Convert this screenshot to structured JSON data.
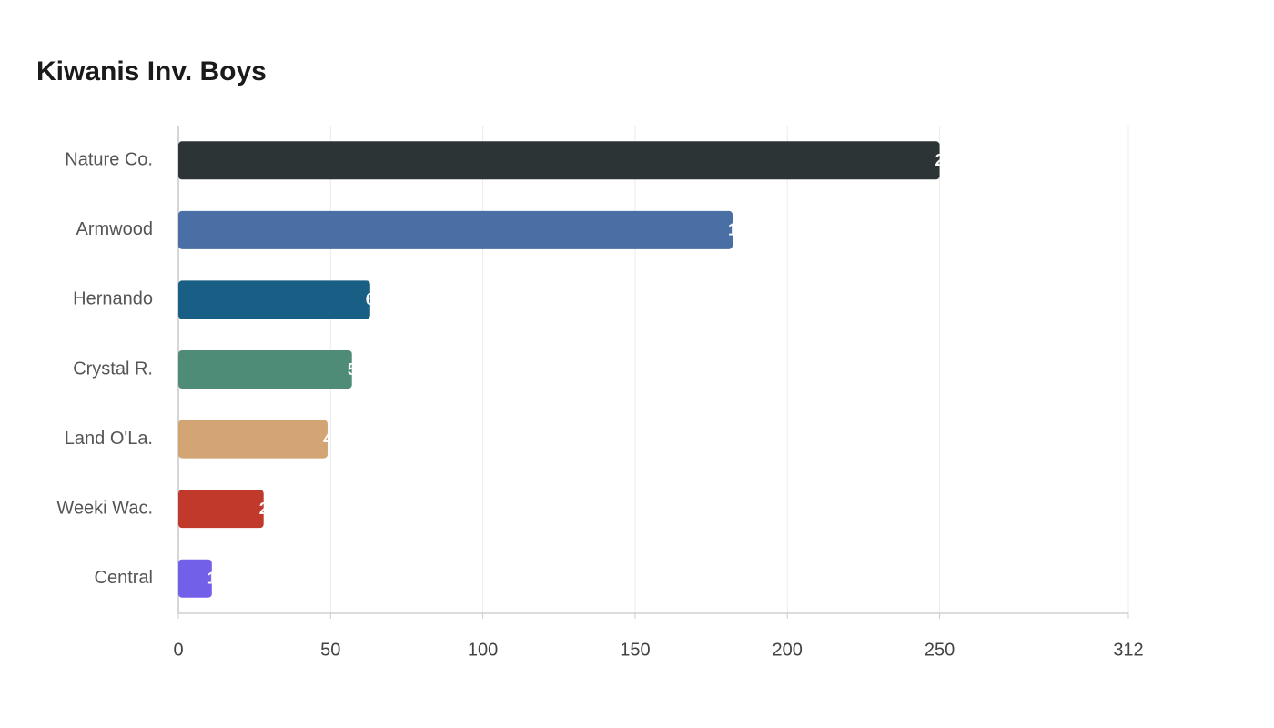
{
  "chart_data": {
    "type": "hbar",
    "title": "Kiwanis Inv. Boys",
    "categories": [
      "Nature Co.",
      "Armwood",
      "Hernando",
      "Crystal R.",
      "Land O'La.",
      "Weeki Wac.",
      "Central"
    ],
    "values": [
      250,
      182,
      63,
      57,
      49,
      28,
      11
    ],
    "colors": [
      "#2d3436",
      "#4a6fa5",
      "#185e85",
      "#4e8c78",
      "#d4a574",
      "#c0392b",
      "#7360e8"
    ],
    "xlim": [
      0,
      312
    ],
    "xticks": [
      0,
      50,
      100,
      150,
      200,
      250,
      312
    ],
    "grid": true
  }
}
